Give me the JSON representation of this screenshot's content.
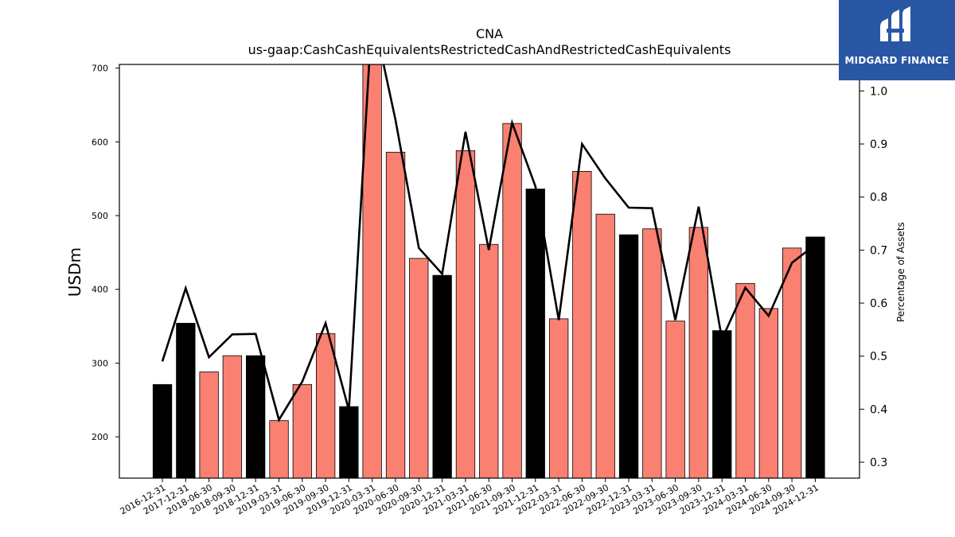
{
  "chart_data": {
    "type": "bar",
    "title": "CNA",
    "subtitle": "us-gaap:CashCashEquivalentsRestrictedCashAndRestrictedCashEquivalents",
    "ylabel": "USDm",
    "y2label": "Percentage of Assets",
    "ylim": [
      144,
      705
    ],
    "y2lim": [
      0.27,
      1.05
    ],
    "yticks": [
      200,
      300,
      400,
      500,
      600,
      700
    ],
    "y2ticks": [
      0.3,
      0.4,
      0.5,
      0.6,
      0.7,
      0.8,
      0.9,
      1.0
    ],
    "categories": [
      "2016-12-31",
      "2017-12-31",
      "2018-06-30",
      "2018-09-30",
      "2018-12-31",
      "2019-03-31",
      "2019-06-30",
      "2019-09-30",
      "2019-12-31",
      "2020-03-31",
      "2020-06-30",
      "2020-09-30",
      "2020-12-31",
      "2021-03-31",
      "2021-06-30",
      "2021-09-30",
      "2021-12-31",
      "2022-03-31",
      "2022-06-30",
      "2022-09-30",
      "2022-12-31",
      "2023-03-31",
      "2023-06-30",
      "2023-09-30",
      "2023-12-31",
      "2024-03-31",
      "2024-06-30",
      "2024-09-30",
      "2024-12-31"
    ],
    "series": [
      {
        "type": "bar",
        "values": [
          271,
          354,
          288,
          310,
          310,
          222,
          271,
          340,
          241,
          720,
          586,
          442,
          419,
          588,
          461,
          625,
          536,
          360,
          560,
          502,
          474,
          482,
          357,
          484,
          344,
          408,
          374,
          456,
          471
        ],
        "annual": [
          true,
          true,
          false,
          false,
          true,
          false,
          false,
          false,
          true,
          false,
          false,
          false,
          true,
          false,
          false,
          false,
          true,
          false,
          false,
          false,
          true,
          false,
          false,
          false,
          true,
          false,
          false,
          false,
          true
        ]
      },
      {
        "type": "line",
        "axis": "right",
        "values": [
          0.49,
          0.628,
          0.498,
          0.541,
          0.542,
          0.38,
          0.452,
          0.562,
          0.398,
          1.15,
          0.945,
          0.704,
          0.655,
          0.923,
          0.7,
          0.94,
          0.82,
          0.568,
          0.9,
          0.835,
          0.78,
          0.779,
          0.568,
          0.782,
          0.532,
          0.629,
          0.576,
          0.676,
          0.71
        ]
      }
    ],
    "colors": {
      "annual": "#000000",
      "quarterly": "#fa8072",
      "line": "#000000"
    }
  },
  "logo": {
    "text": "MIDGARD FINANCE"
  }
}
